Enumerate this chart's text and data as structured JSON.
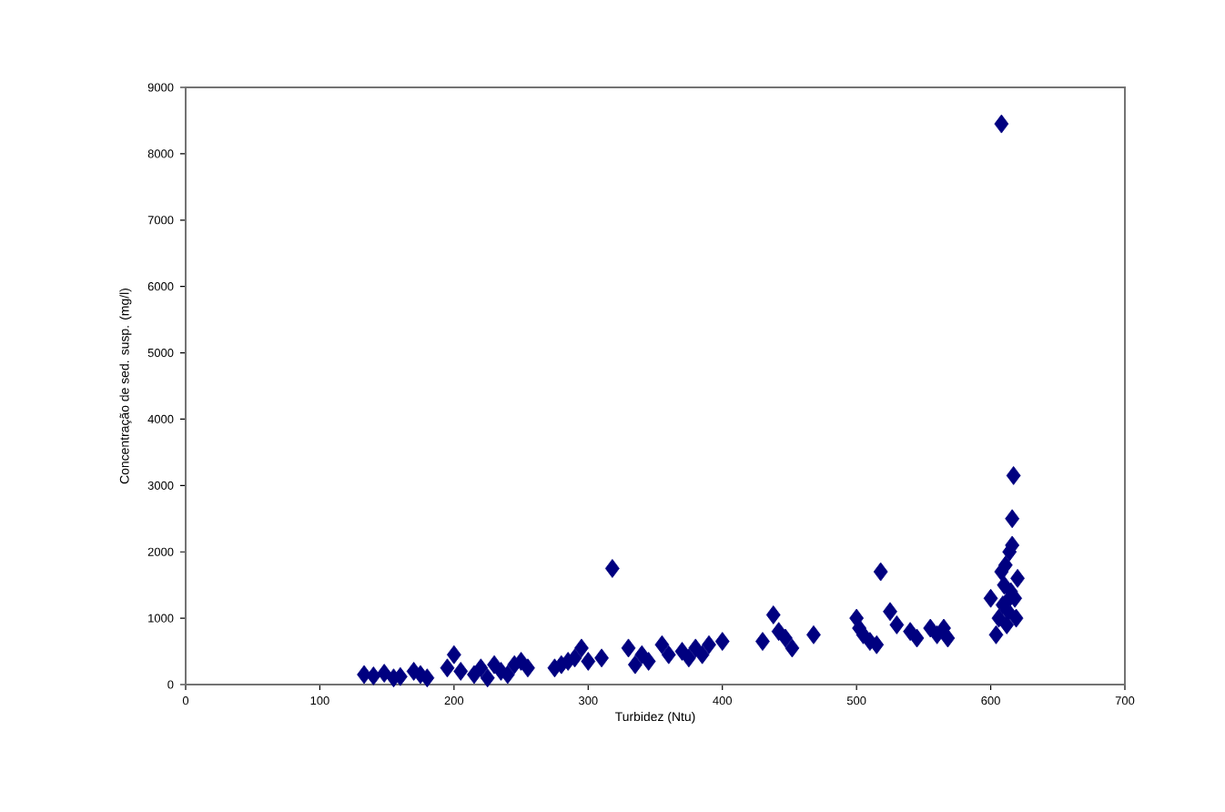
{
  "chart_data": {
    "type": "scatter",
    "xlabel": "Turbidez (Ntu)",
    "ylabel": "Concentração de sed. susp. (mg/l)",
    "xlim": [
      0,
      700
    ],
    "xticks": [
      0,
      100,
      200,
      300,
      400,
      500,
      600,
      700
    ],
    "ylim": [
      0,
      9000
    ],
    "yticks": [
      0,
      1000,
      2000,
      3000,
      4000,
      5000,
      6000,
      7000,
      8000,
      9000
    ],
    "marker": "diamond",
    "grid": false,
    "series": [
      {
        "color": "#000080",
        "x": [
          133,
          140,
          148,
          155,
          160,
          170,
          175,
          180,
          195,
          200,
          205,
          215,
          220,
          225,
          230,
          235,
          240,
          245,
          250,
          255,
          275,
          280,
          285,
          290,
          295,
          300,
          310,
          318,
          330,
          335,
          340,
          345,
          355,
          360,
          370,
          375,
          380,
          385,
          390,
          400,
          430,
          438,
          442,
          447,
          452,
          468,
          500,
          502,
          505,
          510,
          515,
          518,
          525,
          530,
          540,
          545,
          555,
          560,
          565,
          568,
          600,
          604,
          606,
          608,
          609,
          610,
          611,
          612,
          613,
          614,
          615,
          616,
          617,
          616,
          618,
          619,
          620,
          612,
          608
        ],
        "values": [
          150,
          130,
          170,
          100,
          120,
          200,
          150,
          100,
          250,
          450,
          200,
          150,
          250,
          100,
          300,
          200,
          150,
          300,
          350,
          250,
          250,
          300,
          350,
          400,
          550,
          350,
          400,
          1750,
          550,
          300,
          450,
          350,
          600,
          450,
          500,
          400,
          550,
          450,
          600,
          650,
          650,
          1050,
          800,
          700,
          550,
          750,
          1000,
          850,
          750,
          650,
          600,
          1700,
          1100,
          900,
          800,
          700,
          850,
          750,
          850,
          700,
          1300,
          750,
          1000,
          8450,
          1200,
          1500,
          1800,
          900,
          1100,
          2000,
          1400,
          2100,
          3150,
          2500,
          1300,
          1000,
          1600,
          1250,
          1700
        ]
      }
    ]
  }
}
